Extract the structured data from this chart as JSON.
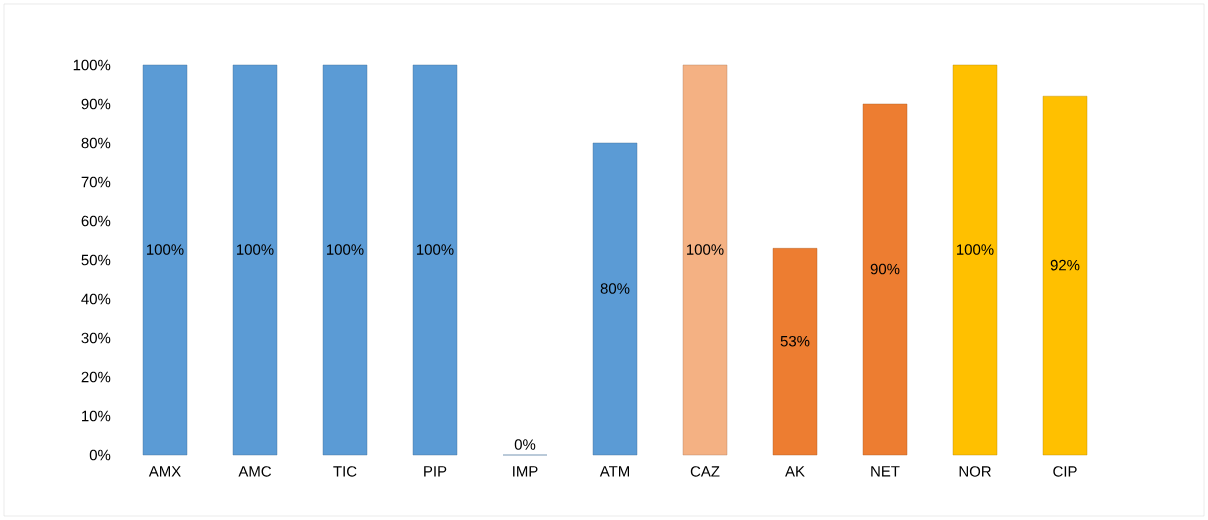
{
  "chart_data": {
    "type": "bar",
    "categories": [
      "AMX",
      "AMC",
      "TIC",
      "PIP",
      "IMP",
      "ATM",
      "CAZ",
      "AK",
      "NET",
      "NOR",
      "CIP"
    ],
    "values": [
      100,
      100,
      100,
      100,
      0,
      80,
      100,
      53,
      90,
      100,
      92
    ],
    "colors": [
      "#5b9bd5",
      "#5b9bd5",
      "#5b9bd5",
      "#5b9bd5",
      "#5b9bd5",
      "#5b9bd5",
      "#f4b183",
      "#ed7d31",
      "#ed7d31",
      "#ffc000",
      "#ffc000"
    ],
    "value_labels": [
      "100%",
      "100%",
      "100%",
      "100%",
      "0%",
      "80%",
      "100%",
      "53%",
      "90%",
      "100%",
      "92%"
    ],
    "ylim": [
      0,
      100
    ],
    "yticks": [
      {
        "value": 0,
        "label": "0%"
      },
      {
        "value": 10,
        "label": "10%"
      },
      {
        "value": 20,
        "label": "20%"
      },
      {
        "value": 30,
        "label": "30%"
      },
      {
        "value": 40,
        "label": "40%"
      },
      {
        "value": 50,
        "label": "50%"
      },
      {
        "value": 60,
        "label": "60%"
      },
      {
        "value": 70,
        "label": "70%"
      },
      {
        "value": 80,
        "label": "80%"
      },
      {
        "value": 90,
        "label": "90%"
      },
      {
        "value": 100,
        "label": "100%"
      }
    ],
    "grid": false
  }
}
